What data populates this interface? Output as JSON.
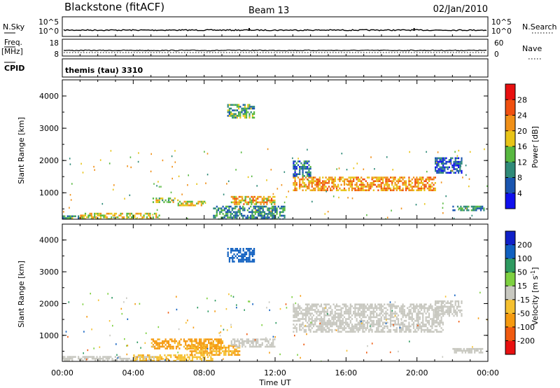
{
  "header": {
    "station": "Blackstone (fitACF)",
    "beam": "Beam 13",
    "date": "02/Jan/2010"
  },
  "noise_panel": {
    "left_label": "N.Sky",
    "right_label": "N.Search",
    "left_ticks": [
      "10^5",
      "10^0"
    ],
    "right_ticks": [
      "10^5",
      "10^0"
    ]
  },
  "freq_panel": {
    "left_label_top": "Freq.",
    "left_label_bottom": "[MHz]",
    "right_label": "Nave",
    "left_ticks": [
      "18",
      "8"
    ],
    "right_ticks": [
      "60",
      "0"
    ]
  },
  "cpid": {
    "label": "CPID",
    "value": "themis (tau) 3310"
  },
  "axes": {
    "ylabel": "Slant Range [km]",
    "xlabel": "Time UT",
    "y_ticks": [
      "1000",
      "2000",
      "3000",
      "4000"
    ],
    "x_ticks": [
      "00:00",
      "04:00",
      "08:00",
      "12:00",
      "16:00",
      "20:00",
      "00:00"
    ]
  },
  "colorbars": {
    "power": {
      "label": "Power [dB]",
      "ticks": [
        "4",
        "8",
        "12",
        "16",
        "20",
        "24",
        "28"
      ],
      "colors": [
        "#1010ee",
        "#1a55b0",
        "#2f8a78",
        "#58b840",
        "#e8c418",
        "#f09018",
        "#f05010",
        "#e81010"
      ]
    },
    "velocity": {
      "label_main": "Velocity [m s",
      "label_sup": "-1",
      "label_end": "]",
      "ticks": [
        "200",
        "100",
        "50",
        "15",
        "-15",
        "-50",
        "-100",
        "-200"
      ],
      "colors": [
        "#e81010",
        "#f05a10",
        "#f59a10",
        "#f5c030",
        "#c8c8c0",
        "#7ed040",
        "#2e9a60",
        "#1060c0",
        "#1020c8"
      ]
    }
  },
  "chart_data": [
    {
      "type": "heatmap",
      "title": "Power [dB]",
      "xlabel": "Time UT",
      "ylabel": "Slant Range [km]",
      "xlim": [
        0,
        24
      ],
      "ylim": [
        180,
        4500
      ],
      "clim": [
        0,
        32
      ],
      "regions": [
        {
          "t": [
            0.0,
            1.0
          ],
          "r": [
            180,
            300
          ],
          "value": 12
        },
        {
          "t": [
            1.0,
            5.5
          ],
          "r": [
            180,
            380
          ],
          "value": 18
        },
        {
          "t": [
            5.0,
            6.5
          ],
          "r": [
            700,
            850
          ],
          "value": 16
        },
        {
          "t": [
            6.5,
            8.0
          ],
          "r": [
            600,
            750
          ],
          "value": 18
        },
        {
          "t": [
            8.5,
            12.5
          ],
          "r": [
            180,
            600
          ],
          "value": 10
        },
        {
          "t": [
            9.5,
            12.0
          ],
          "r": [
            650,
            900
          ],
          "value": 20
        },
        {
          "t": [
            9.3,
            10.8
          ],
          "r": [
            3300,
            3750
          ],
          "value": 12
        },
        {
          "t": [
            13.0,
            21.0
          ],
          "r": [
            1100,
            1500
          ],
          "value": 22
        },
        {
          "t": [
            13.0,
            14.0
          ],
          "r": [
            1500,
            2000
          ],
          "value": 8
        },
        {
          "t": [
            21.0,
            22.5
          ],
          "r": [
            1600,
            2100
          ],
          "value": 6
        },
        {
          "t": [
            22.0,
            23.8
          ],
          "r": [
            450,
            600
          ],
          "value": 10
        }
      ]
    },
    {
      "type": "heatmap",
      "title": "Velocity [m s-1]",
      "xlabel": "Time UT",
      "ylabel": "Slant Range [km]",
      "xlim": [
        0,
        24
      ],
      "ylim": [
        180,
        4500
      ],
      "clim": [
        -250,
        250
      ],
      "regions": [
        {
          "t": [
            0.0,
            5.5
          ],
          "r": [
            180,
            350
          ],
          "value": 0
        },
        {
          "t": [
            4.0,
            8.5
          ],
          "r": [
            200,
            400
          ],
          "value": -40
        },
        {
          "t": [
            5.0,
            9.0
          ],
          "r": [
            600,
            900
          ],
          "value": -60
        },
        {
          "t": [
            7.0,
            10.0
          ],
          "r": [
            400,
            700
          ],
          "value": -50
        },
        {
          "t": [
            9.5,
            12.0
          ],
          "r": [
            650,
            900
          ],
          "value": 0
        },
        {
          "t": [
            9.3,
            10.8
          ],
          "r": [
            3300,
            3750
          ],
          "value": 120
        },
        {
          "t": [
            13.0,
            21.5
          ],
          "r": [
            1100,
            2000
          ],
          "value": 0
        },
        {
          "t": [
            21.0,
            22.5
          ],
          "r": [
            1600,
            2100
          ],
          "value": 0
        },
        {
          "t": [
            22.0,
            23.8
          ],
          "r": [
            450,
            600
          ],
          "value": 0
        }
      ]
    }
  ]
}
